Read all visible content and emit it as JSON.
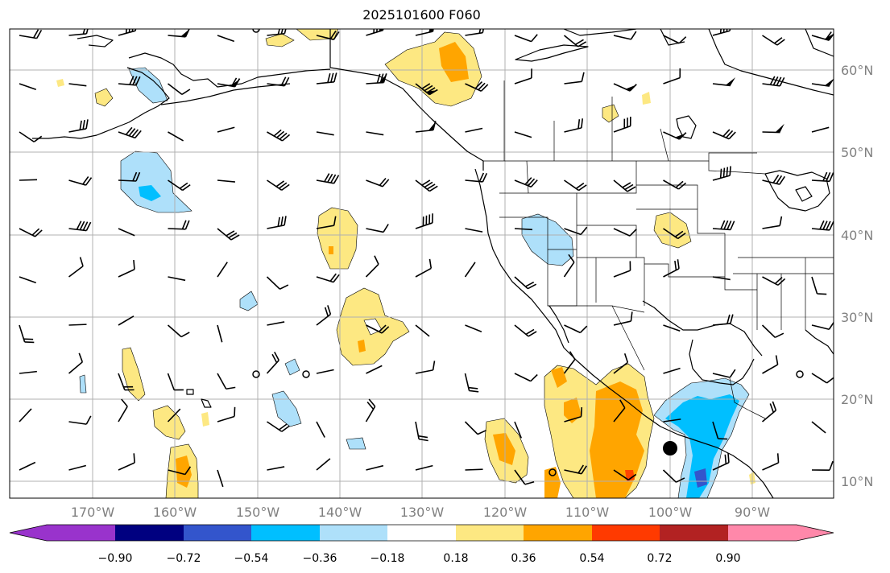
{
  "title": "2025101600 F060",
  "lon_labels": [
    "170°W",
    "160°W",
    "150°W",
    "140°W",
    "130°W",
    "120°W",
    "110°W",
    "100°W",
    "90°W"
  ],
  "lat_labels": [
    "60°N",
    "50°N",
    "40°N",
    "30°N",
    "20°N",
    "10°N"
  ],
  "colorbar": {
    "tick_labels": [
      "−0.90",
      "−0.72",
      "−0.54",
      "−0.36",
      "−0.18",
      "0.18",
      "0.36",
      "0.54",
      "0.72",
      "0.90"
    ],
    "colors": [
      "#9933cc",
      "#000080",
      "#3355cc",
      "#00bfff",
      "#aee0fa",
      "#ffffff",
      "#fde882",
      "#ffa500",
      "#ff3a00",
      "#b22222",
      "#ff88aa"
    ]
  },
  "colors": {
    "land_line": "#000000",
    "grid": "#b0b0b0",
    "pos1": "#fde882",
    "pos2": "#ffa500",
    "pos3": "#ff4500",
    "neg1": "#aee0fa",
    "neg2": "#00bfff",
    "neg3": "#3355cc"
  }
}
